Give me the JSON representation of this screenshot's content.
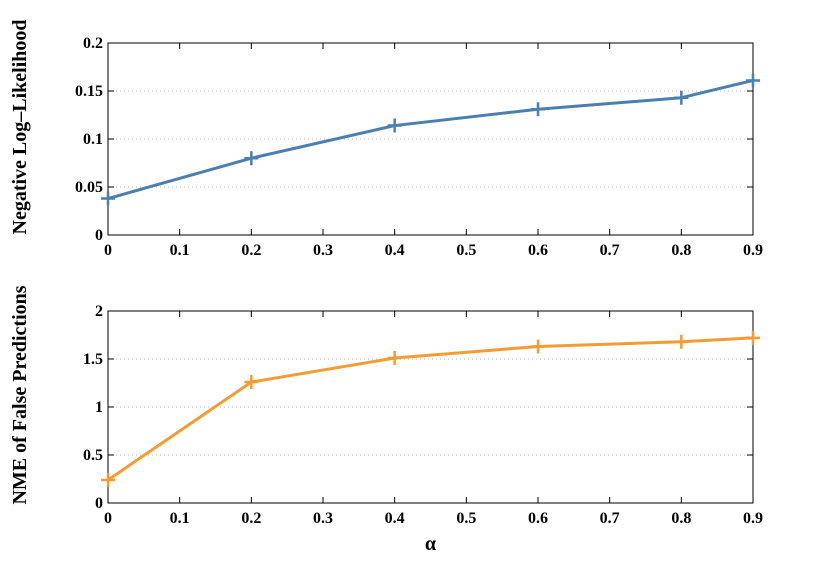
{
  "chart_data": [
    {
      "type": "line",
      "title": "",
      "xlabel": "",
      "ylabel": "Negative Log–Likelihood",
      "xlim": [
        0,
        0.9
      ],
      "ylim": [
        0,
        0.2
      ],
      "x_ticks": [
        0,
        0.1,
        0.2,
        0.3,
        0.4,
        0.5,
        0.6,
        0.7,
        0.8,
        0.9
      ],
      "x_tick_labels": [
        "0",
        "0.1",
        "0.2",
        "0.3",
        "0.4",
        "0.5",
        "0.6",
        "0.7",
        "0.8",
        "0.9"
      ],
      "y_ticks": [
        0,
        0.05,
        0.1,
        0.15,
        0.2
      ],
      "y_tick_labels": [
        "0",
        "0.05",
        "0.1",
        "0.15",
        "0.2"
      ],
      "grid": "horizontal dotted",
      "marker": "+",
      "color": "#4a7fb0",
      "series": [
        {
          "x": [
            0,
            0.2,
            0.4,
            0.6,
            0.8,
            0.9
          ],
          "values": [
            0.038,
            0.08,
            0.114,
            0.131,
            0.143,
            0.161
          ]
        }
      ]
    },
    {
      "type": "line",
      "title": "",
      "xlabel": "α",
      "ylabel": "NME of False Predictions",
      "xlim": [
        0,
        0.9
      ],
      "ylim": [
        0,
        2
      ],
      "x_ticks": [
        0,
        0.1,
        0.2,
        0.3,
        0.4,
        0.5,
        0.6,
        0.7,
        0.8,
        0.9
      ],
      "x_tick_labels": [
        "0",
        "0.1",
        "0.2",
        "0.3",
        "0.4",
        "0.5",
        "0.6",
        "0.7",
        "0.8",
        "0.9"
      ],
      "y_ticks": [
        0,
        0.5,
        1,
        1.5,
        2
      ],
      "y_tick_labels": [
        "0",
        "0.5",
        "1",
        "1.5",
        "2"
      ],
      "grid": "horizontal dotted",
      "marker": "+",
      "color": "#f39c34",
      "series": [
        {
          "x": [
            0,
            0.2,
            0.4,
            0.6,
            0.8,
            0.9
          ],
          "values": [
            0.24,
            1.26,
            1.51,
            1.63,
            1.68,
            1.72
          ]
        }
      ]
    }
  ]
}
